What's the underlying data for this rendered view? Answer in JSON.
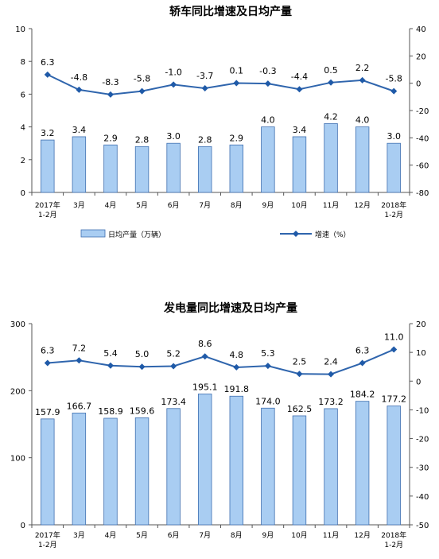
{
  "colors": {
    "bar_fill": "#a9cdf2",
    "bar_stroke": "#3f6fb0",
    "line": "#2f65ad",
    "marker": "#1f5aa8",
    "axis": "#555555"
  },
  "chart_data": [
    {
      "type": "bar",
      "title": "轿车同比增速及日均产量",
      "categories": [
        [
          "2017年",
          "1-2月"
        ],
        [
          "3月"
        ],
        [
          "4月"
        ],
        [
          "5月"
        ],
        [
          "6月"
        ],
        [
          "7月"
        ],
        [
          "8月"
        ],
        [
          "9月"
        ],
        [
          "10月"
        ],
        [
          "11月"
        ],
        [
          "12月"
        ],
        [
          "2018年",
          "1-2月"
        ]
      ],
      "ylim": [
        0,
        10
      ],
      "yticks": [
        0,
        2,
        4,
        6,
        8,
        10
      ],
      "y2lim": [
        -80,
        40
      ],
      "y2ticks": [
        -80,
        -60,
        -40,
        -20,
        0,
        20,
        40
      ],
      "series": [
        {
          "name": "日均产量（万辆）",
          "kind": "bar",
          "axis": "left",
          "values": [
            3.2,
            3.4,
            2.9,
            2.8,
            3.0,
            2.8,
            2.9,
            4.0,
            3.4,
            4.2,
            4.0,
            3.0
          ],
          "labels": [
            "3.2",
            "3.4",
            "2.9",
            "2.8",
            "3.0",
            "2.8",
            "2.9",
            "4.0",
            "3.4",
            "4.2",
            "4.0",
            "3.0"
          ]
        },
        {
          "name": "增速（%）",
          "kind": "line",
          "axis": "right",
          "values": [
            6.3,
            -4.8,
            -8.3,
            -5.8,
            -1.0,
            -3.7,
            0.1,
            -0.3,
            -4.4,
            0.5,
            2.2,
            -5.8
          ],
          "labels": [
            "6.3",
            "-4.8",
            "-8.3",
            "-5.8",
            "-1.0",
            "-3.7",
            "0.1",
            "-0.3",
            "-4.4",
            "0.5",
            "2.2",
            "-5.8"
          ]
        }
      ],
      "legend": {
        "position": "bottom",
        "entries": [
          "日均产量（万辆）",
          "增速（%）"
        ]
      },
      "grid": false
    },
    {
      "type": "bar",
      "title": "发电量同比增速及日均产量",
      "categories": [
        [
          "2017年",
          "1-2月"
        ],
        [
          "3月"
        ],
        [
          "4月"
        ],
        [
          "5月"
        ],
        [
          "6月"
        ],
        [
          "7月"
        ],
        [
          "8月"
        ],
        [
          "9月"
        ],
        [
          "10月"
        ],
        [
          "11月"
        ],
        [
          "12月"
        ],
        [
          "2018年",
          "1-2月"
        ]
      ],
      "ylim": [
        0,
        300
      ],
      "yticks": [
        0,
        100,
        200,
        300
      ],
      "y2lim": [
        -50,
        20
      ],
      "y2ticks": [
        -50,
        -40,
        -30,
        -20,
        -10,
        0,
        10,
        20
      ],
      "series": [
        {
          "kind": "bar",
          "axis": "left",
          "values": [
            157.9,
            166.7,
            158.9,
            159.6,
            173.4,
            195.1,
            191.8,
            174.0,
            162.5,
            173.2,
            184.2,
            177.2
          ],
          "labels": [
            "157.9",
            "166.7",
            "158.9",
            "159.6",
            "173.4",
            "195.1",
            "191.8",
            "174.0",
            "162.5",
            "173.2",
            "184.2",
            "177.2"
          ]
        },
        {
          "kind": "line",
          "axis": "right",
          "values": [
            6.3,
            7.2,
            5.4,
            5.0,
            5.2,
            8.6,
            4.8,
            5.3,
            2.5,
            2.4,
            6.3,
            11.0
          ],
          "labels": [
            "6.3",
            "7.2",
            "5.4",
            "5.0",
            "5.2",
            "8.6",
            "4.8",
            "5.3",
            "2.5",
            "2.4",
            "6.3",
            "11.0"
          ]
        }
      ],
      "grid": false
    }
  ]
}
